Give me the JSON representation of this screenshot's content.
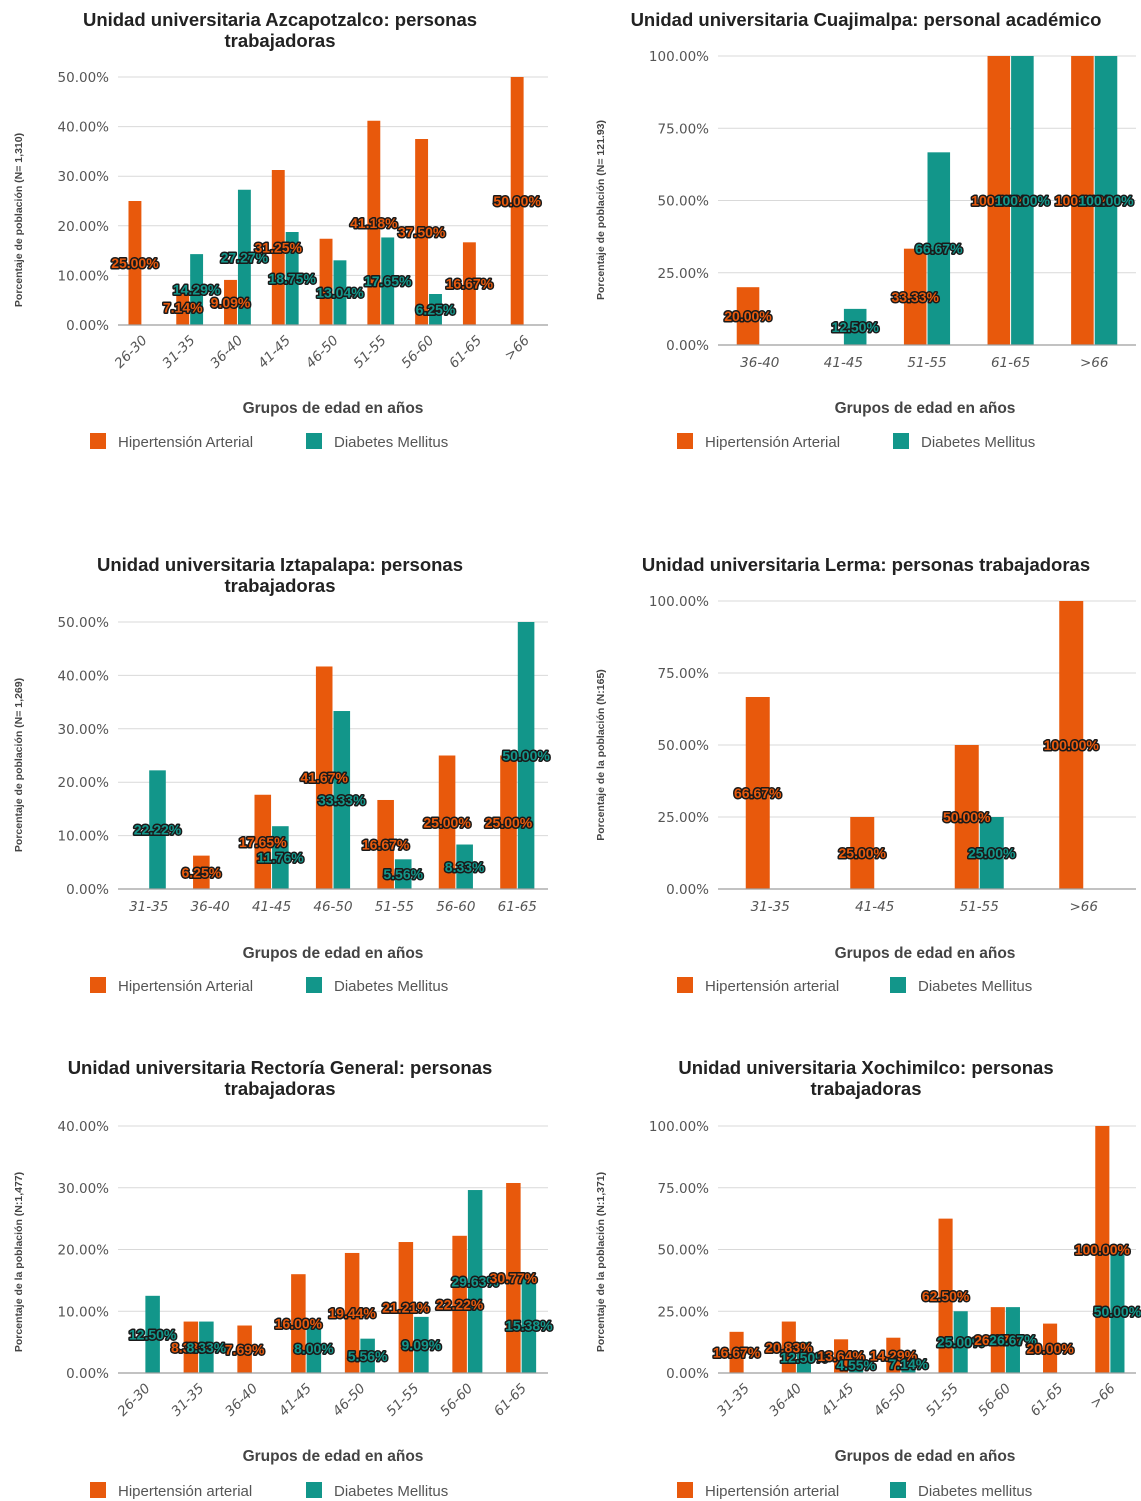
{
  "colors": {
    "hypertension": "#e8590c",
    "diabetes": "#12968a",
    "label_halo": "#1a1a1a"
  },
  "chart_data": [
    {
      "type": "bar",
      "title_lines": [
        "Unidad universitaria Azcapotzalco: personas",
        "trabajadoras"
      ],
      "xlabel": "Grupos de edad en años",
      "ylabel": "Porcentaje de población (N= 1,310)",
      "ylim": [
        0,
        50
      ],
      "yticks": [
        "0.00%",
        "10.00%",
        "20.00%",
        "30.00%",
        "40.00%",
        "50.00%"
      ],
      "categories": [
        "26-30",
        "31-35",
        "36-40",
        "41-45",
        "46-50",
        "51-55",
        "56-60",
        "61-65",
        ">66"
      ],
      "rotated_ticks": true,
      "series": [
        {
          "name": "Hipertensión Arterial",
          "values": [
            25.0,
            7.14,
            9.09,
            31.25,
            17.39,
            41.18,
            37.5,
            16.67,
            50.0
          ],
          "labels": [
            "25.00%",
            "7.14%",
            "9.09%",
            "31.25%",
            "",
            "41.18%",
            "37.50%",
            "16.67%",
            "50.00%"
          ]
        },
        {
          "name": "Diabetes Mellitus",
          "values": [
            0,
            14.29,
            27.27,
            18.75,
            13.04,
            17.65,
            6.25,
            0,
            0
          ],
          "labels": [
            "",
            "14.29%",
            "27.27%",
            "18.75%",
            "13.04%",
            "17.65%",
            "6.25%",
            "",
            ""
          ]
        }
      ]
    },
    {
      "type": "bar",
      "title_lines": [
        "Unidad universitaria Cuajimalpa: personal académico"
      ],
      "xlabel": "Grupos de edad en años",
      "ylabel": "Porcentaje de población (N= 121.93)",
      "ylim": [
        0,
        100
      ],
      "yticks": [
        "0.00%",
        "25.00%",
        "50.00%",
        "75.00%",
        "100.00%"
      ],
      "categories": [
        "36-40",
        "41-45",
        "51-55",
        "61-65",
        ">66"
      ],
      "rotated_ticks": false,
      "series": [
        {
          "name": "Hipertensión Arterial",
          "values": [
            20.0,
            0,
            33.33,
            100.0,
            100.0
          ],
          "labels": [
            "20.00%",
            "",
            "33.33%",
            "100.00%",
            "100.00%"
          ]
        },
        {
          "name": "Diabetes Mellitus",
          "values": [
            0,
            12.5,
            66.67,
            100.0,
            100.0
          ],
          "labels": [
            "",
            "12.50%",
            "66.67%",
            "100.00%",
            "100.00%"
          ]
        }
      ]
    },
    {
      "type": "bar",
      "title_lines": [
        "Unidad universitaria Iztapalapa: personas",
        "trabajadoras"
      ],
      "xlabel": "Grupos de edad en años",
      "ylabel": "Porcentaje de población (N= 1,269)",
      "ylim": [
        0,
        50
      ],
      "yticks": [
        "0.00%",
        "10.00%",
        "20.00%",
        "30.00%",
        "40.00%",
        "50.00%"
      ],
      "categories": [
        "31-35",
        "36-40",
        "41-45",
        "46-50",
        "51-55",
        "56-60",
        "61-65"
      ],
      "rotated_ticks": false,
      "series": [
        {
          "name": "Hipertensión Arterial",
          "values": [
            0,
            6.25,
            17.65,
            41.67,
            16.67,
            25.0,
            25.0
          ],
          "labels": [
            "",
            "6.25%",
            "17.65%",
            "41.67%",
            "16.67%",
            "25.00%",
            "25.00%"
          ]
        },
        {
          "name": "Diabetes Mellitus",
          "values": [
            22.22,
            0,
            11.76,
            33.33,
            5.56,
            8.33,
            50.0
          ],
          "labels": [
            "22.22%",
            "",
            "11.76%",
            "33.33%",
            "5.56%",
            "8.33%",
            "50.00%"
          ]
        }
      ]
    },
    {
      "type": "bar",
      "title_lines": [
        "Unidad universitaria Lerma: personas trabajadoras"
      ],
      "xlabel": "Grupos de edad en años",
      "ylabel": "Porcentaje de la población (N:165)",
      "ylim": [
        0,
        100
      ],
      "yticks": [
        "0.00%",
        "25.00%",
        "50.00%",
        "75.00%",
        "100.00%"
      ],
      "categories": [
        "31-35",
        "41-45",
        "51-55",
        ">66"
      ],
      "rotated_ticks": false,
      "series": [
        {
          "name": "Hipertensión arterial",
          "values": [
            66.67,
            25.0,
            50.0,
            100.0
          ],
          "labels": [
            "66.67%",
            "25.00%",
            "50.00%",
            "100.00%"
          ]
        },
        {
          "name": "Diabetes Mellitus",
          "values": [
            0,
            0,
            25.0,
            0
          ],
          "labels": [
            "",
            "",
            "25.00%",
            ""
          ]
        }
      ]
    },
    {
      "type": "bar",
      "title_lines": [
        "Unidad universitaria Rectoría General: personas",
        "trabajadoras"
      ],
      "xlabel": "Grupos de edad en años",
      "ylabel": "Porcentaje de la población (N:1,477)",
      "ylim": [
        0,
        40
      ],
      "yticks": [
        "0.00%",
        "10.00%",
        "20.00%",
        "30.00%",
        "40.00%"
      ],
      "categories": [
        "26-30",
        "31-35",
        "36-40",
        "41-45",
        "46-50",
        "51-55",
        "56-60",
        "61-65"
      ],
      "rotated_ticks": true,
      "series": [
        {
          "name": "Hipertensión arterial",
          "values": [
            0,
            8.33,
            7.69,
            16.0,
            19.44,
            21.21,
            22.22,
            30.77
          ],
          "labels": [
            "",
            "8.33%",
            "7.69%",
            "16.00%",
            "19.44%",
            "21.21%",
            "22.22%",
            "30.77%"
          ]
        },
        {
          "name": "Diabetes Mellitus",
          "values": [
            12.5,
            8.33,
            0,
            8.0,
            5.56,
            9.09,
            29.63,
            15.38
          ],
          "labels": [
            "12.50%",
            "8.33%",
            "",
            "8.00%",
            "5.56%",
            "9.09%",
            "29.63%",
            "15.38%"
          ]
        }
      ]
    },
    {
      "type": "bar",
      "title_lines": [
        "Unidad universitaria Xochimilco: personas",
        "trabajadoras"
      ],
      "xlabel": "Grupos de edad en años",
      "ylabel": "Porcentaje de la población (N:1,371)",
      "ylim": [
        0,
        100
      ],
      "yticks": [
        "0.00%",
        "25.00%",
        "50.00%",
        "75.00%",
        "100.00%"
      ],
      "categories": [
        "31-35",
        "36-40",
        "41-45",
        "46-50",
        "51-55",
        "56-60",
        "61-65",
        ">66"
      ],
      "rotated_ticks": true,
      "series": [
        {
          "name": "Hipertensión arterial",
          "values": [
            16.67,
            20.83,
            13.64,
            14.29,
            62.5,
            26.67,
            20.0,
            100.0
          ],
          "labels": [
            "16.67%",
            "20.83%",
            "13.64%",
            "14.29%",
            "62.50%",
            "26.67%",
            "20.00%",
            "100.00%"
          ]
        },
        {
          "name": "Diabetes mellitus",
          "values": [
            0,
            12.5,
            4.55,
            7.14,
            25.0,
            26.67,
            0,
            50.0
          ],
          "labels": [
            "",
            "12.50%",
            "4.55%",
            "7.14%",
            "25.00%",
            "26.67%",
            "",
            "50.00%"
          ]
        }
      ]
    }
  ]
}
